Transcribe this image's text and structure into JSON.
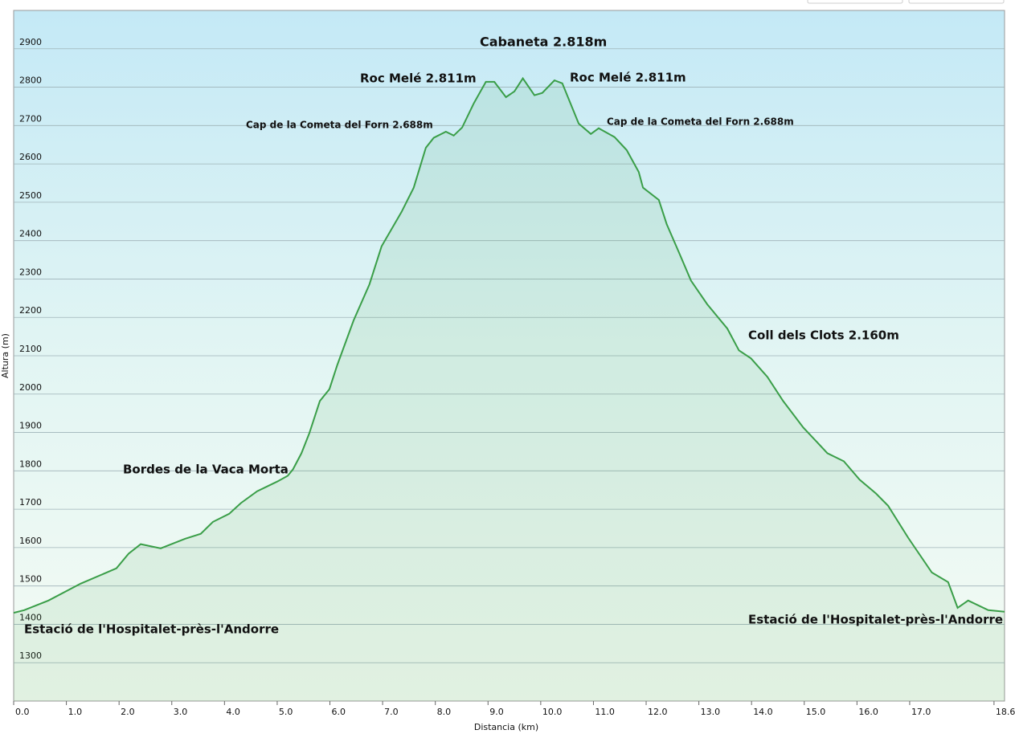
{
  "chart_data": {
    "type": "line",
    "xlabel": "Distancia  (km)",
    "ylabel": "Altura (m)",
    "x": [
      0,
      0.2,
      0.66,
      1.27,
      1.95,
      2.18,
      2.41,
      2.79,
      3.25,
      3.55,
      3.78,
      4.09,
      4.31,
      4.62,
      5.0,
      5.2,
      5.3,
      5.46,
      5.61,
      5.81,
      5.99,
      6.14,
      6.45,
      6.75,
      6.98,
      7.36,
      7.59,
      7.82,
      7.97,
      8.2,
      8.35,
      8.51,
      8.73,
      8.96,
      9.12,
      9.34,
      9.5,
      9.66,
      9.88,
      10.03,
      10.26,
      10.41,
      10.72,
      10.95,
      11.1,
      11.4,
      11.63,
      11.86,
      11.94,
      12.24,
      12.39,
      12.62,
      12.85,
      13.16,
      13.54,
      13.76,
      13.99,
      14.3,
      14.6,
      14.98,
      15.44,
      15.75,
      16.05,
      16.36,
      16.59,
      16.97,
      17.42,
      17.73,
      17.91,
      18.11,
      18.49,
      18.8
    ],
    "series": [
      {
        "name": "Altura",
        "color": "#3a9e48",
        "values": [
          1430,
          1437,
          1462,
          1506,
          1546,
          1584,
          1609,
          1598,
          1623,
          1636,
          1667,
          1688,
          1716,
          1747,
          1772,
          1787,
          1804,
          1846,
          1898,
          1982,
          2013,
          2076,
          2192,
          2286,
          2385,
          2475,
          2538,
          2642,
          2668,
          2684,
          2674,
          2695,
          2758,
          2814,
          2814,
          2774,
          2789,
          2823,
          2779,
          2785,
          2818,
          2810,
          2705,
          2678,
          2693,
          2670,
          2636,
          2579,
          2538,
          2506,
          2443,
          2370,
          2296,
          2234,
          2171,
          2114,
          2093,
          2045,
          1982,
          1913,
          1846,
          1825,
          1777,
          1741,
          1709,
          1626,
          1535,
          1510,
          1443,
          1462,
          1437,
          1433
        ]
      }
    ],
    "xlim": [
      0,
      18.8
    ],
    "ylim": [
      1200,
      3000
    ],
    "xticks": [
      {
        "value": 0,
        "label": "0.0"
      },
      {
        "value": 1,
        "label": "1.0"
      },
      {
        "value": 2,
        "label": "2.0"
      },
      {
        "value": 3,
        "label": "3.0"
      },
      {
        "value": 4,
        "label": "4.0"
      },
      {
        "value": 5,
        "label": "5.0"
      },
      {
        "value": 6,
        "label": "6.0"
      },
      {
        "value": 7,
        "label": "7.0"
      },
      {
        "value": 8,
        "label": "8.0"
      },
      {
        "value": 9,
        "label": "9.0"
      },
      {
        "value": 10,
        "label": "10.0"
      },
      {
        "value": 11,
        "label": "11.0"
      },
      {
        "value": 12,
        "label": "12.0"
      },
      {
        "value": 13,
        "label": "13.0"
      },
      {
        "value": 14,
        "label": "14.0"
      },
      {
        "value": 15,
        "label": "15.0"
      },
      {
        "value": 16,
        "label": "16.0"
      },
      {
        "value": 17,
        "label": "17.0"
      },
      18.6
    ],
    "yticks": [
      1300,
      1400,
      1500,
      1600,
      1700,
      1800,
      1900,
      2000,
      2100,
      2200,
      2300,
      2400,
      2500,
      2600,
      2700,
      2800,
      2900
    ],
    "grid": true,
    "annotations": [
      "Cabaneta 2.818m",
      "Roc Melé 2.811m",
      "Roc Melé 2.811m",
      "Cap  de la Cometa del Forn 2.688m",
      "Cap  de la Cometa del Forn 2.688m",
      "Coll dels Clots 2.160m",
      "Bordes de la Vaca Morta",
      "Estació de l'Hospitalet-près-l'Andorre",
      "Estació de l'Hospitalet-près-l'Andorre"
    ]
  }
}
